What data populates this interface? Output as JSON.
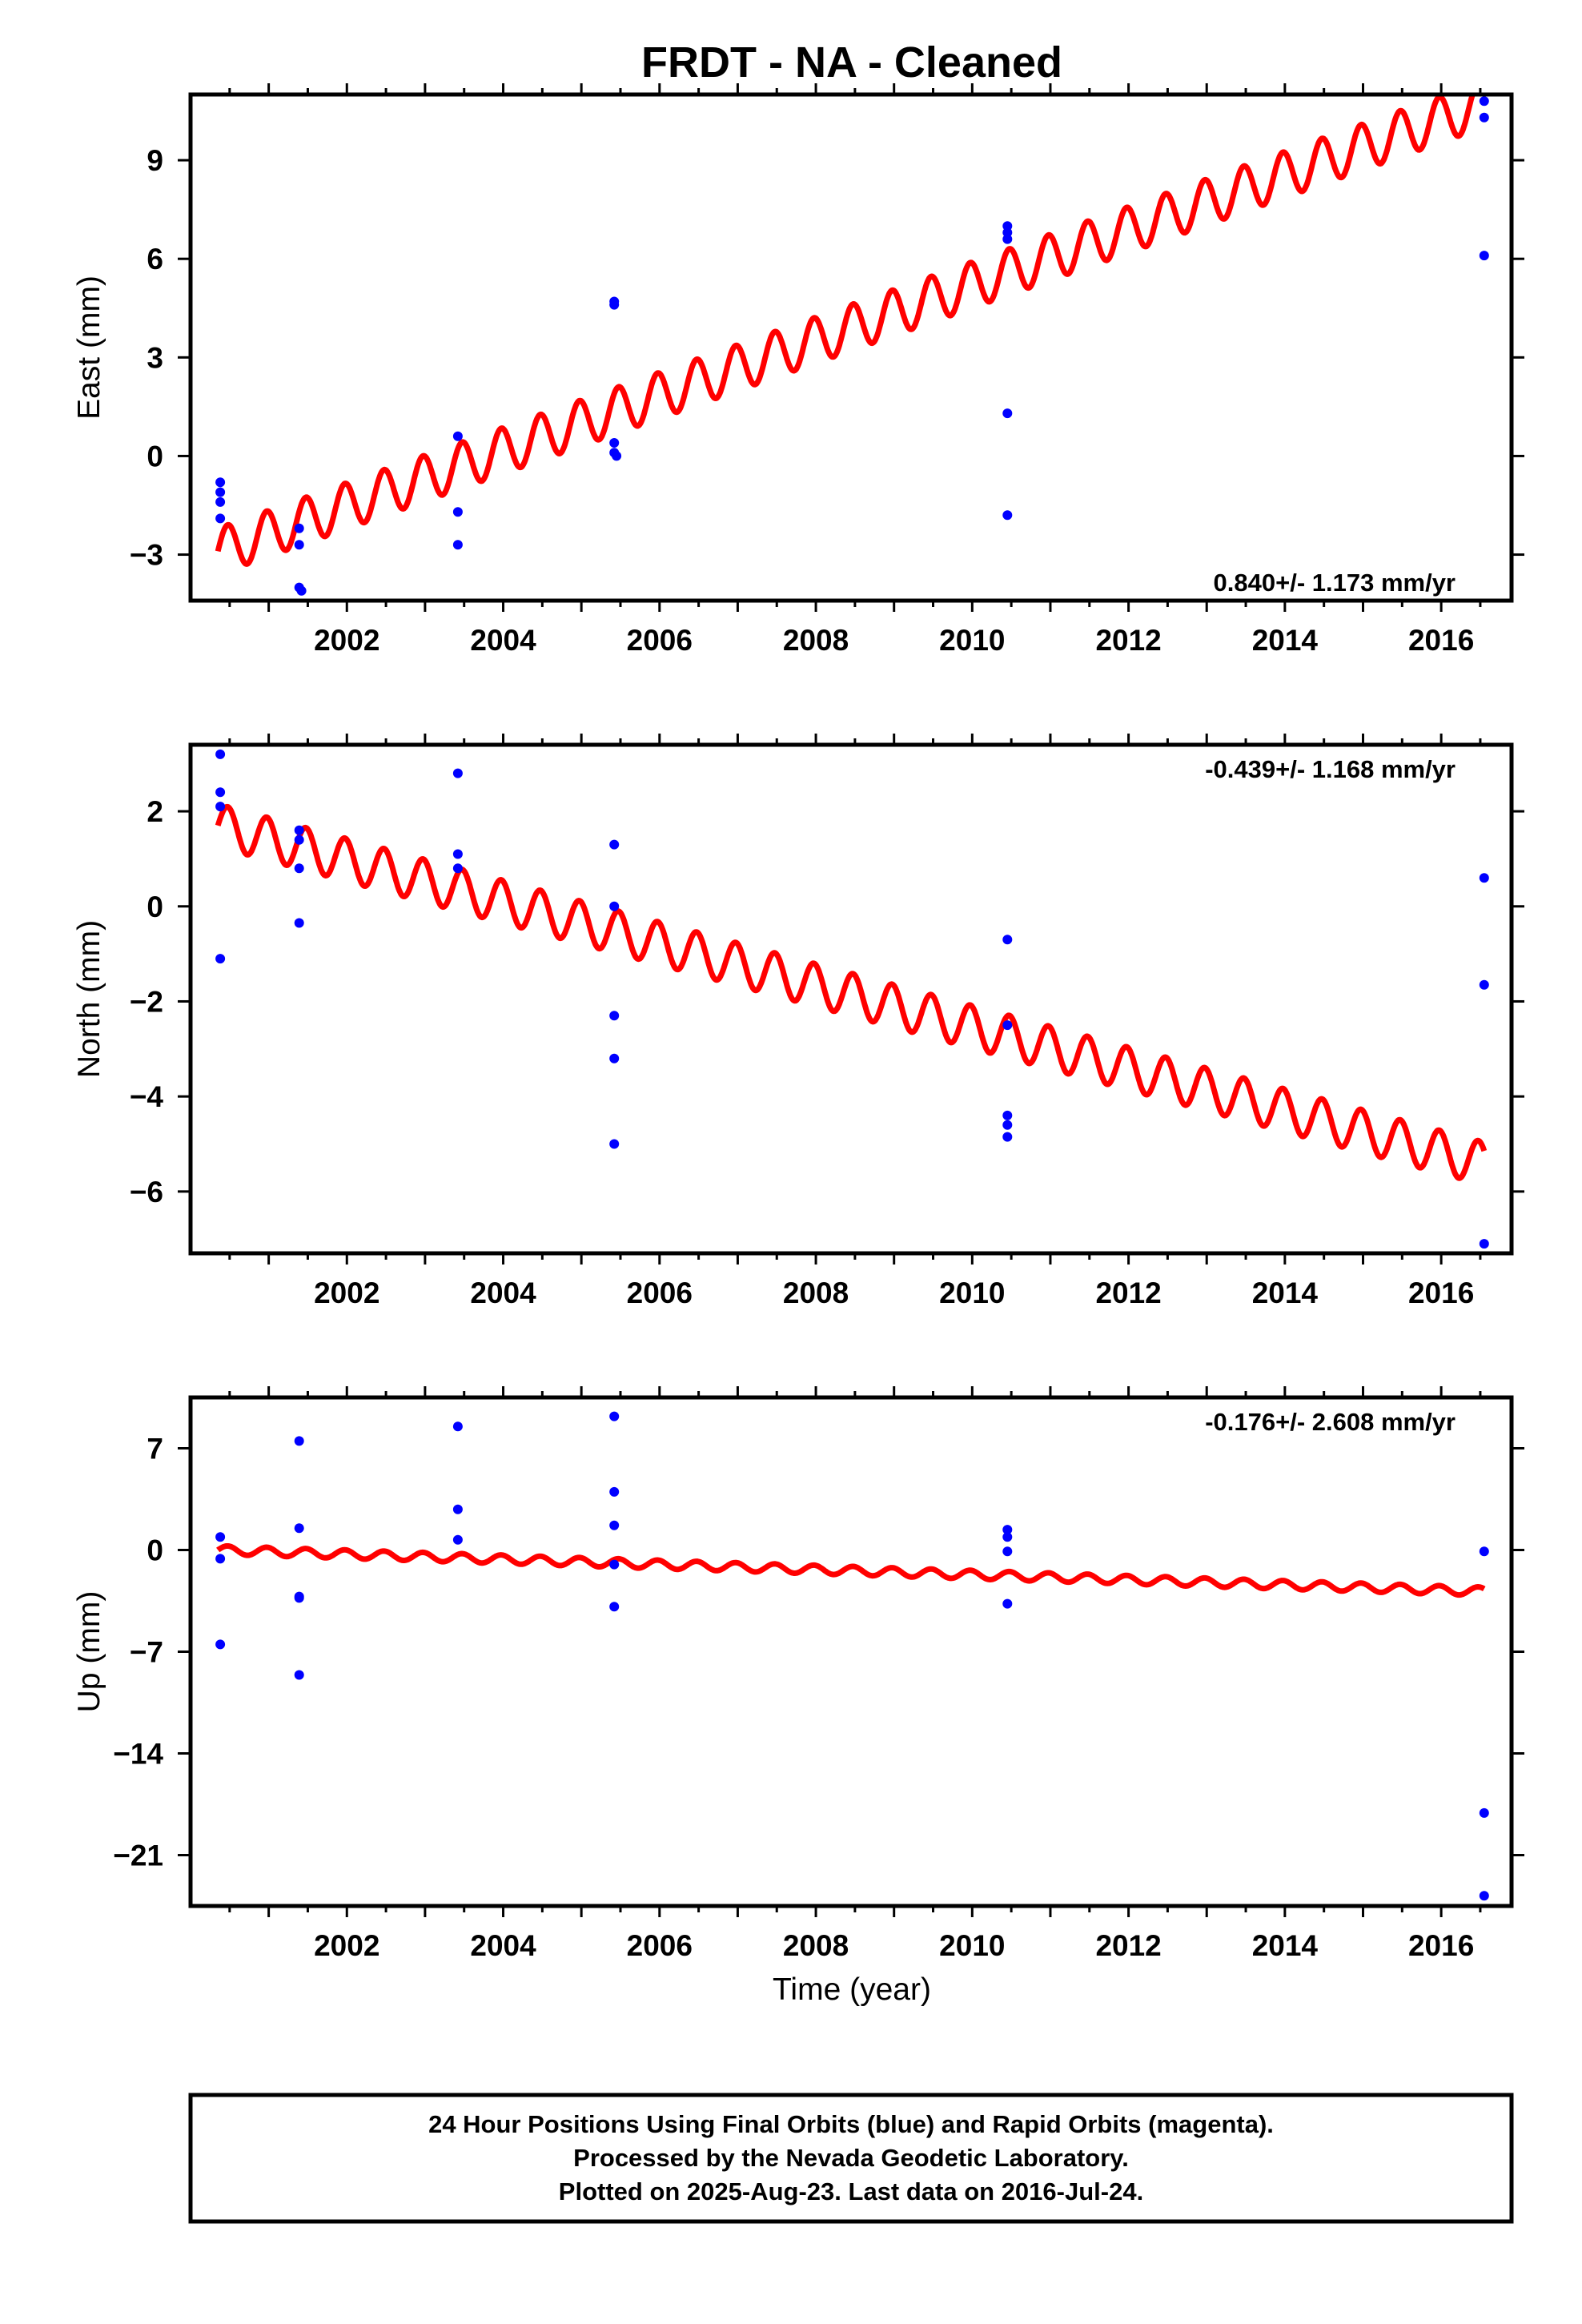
{
  "chart_data": {
    "title": "FRDT  - NA - Cleaned",
    "x_label": "Time (year)",
    "x_ticks": [
      2002,
      2004,
      2006,
      2008,
      2010,
      2012,
      2014,
      2016
    ],
    "xlim": [
      2000.0,
      2016.9
    ],
    "legend": {
      "line1": "24 Hour Positions Using Final Orbits (blue) and Rapid Orbits (magenta).",
      "line2": "Processed by the Nevada Geodetic Laboratory.",
      "line3": "Plotted on 2025-Aug-23. Last data on 2016-Jul-24."
    },
    "colors": {
      "final_orbits": "#0000ff",
      "model": "#ff0000",
      "rapid_orbits": "#ff00ff"
    },
    "panels": [
      {
        "type": "scatter",
        "id": "east",
        "ylabel": "East (mm)",
        "ylim": [
          -4.4,
          11.0
        ],
        "y_ticks": [
          -3,
          0,
          3,
          6,
          9
        ],
        "rate_label": "0.840+/- 1.173 mm/yr",
        "rate_position": "bottom-right",
        "model": {
          "start": 2000.35,
          "end": 2016.55,
          "a": -2.9,
          "b": 0.84,
          "amp": 0.7,
          "period": 0.5
        },
        "points": [
          [
            2000.38,
            -0.8
          ],
          [
            2000.38,
            -1.1
          ],
          [
            2000.38,
            -1.4
          ],
          [
            2000.38,
            -1.9
          ],
          [
            2001.39,
            -2.2
          ],
          [
            2001.39,
            -2.7
          ],
          [
            2001.39,
            -4.0
          ],
          [
            2001.42,
            -4.1
          ],
          [
            2003.42,
            0.6
          ],
          [
            2003.42,
            -1.7
          ],
          [
            2003.42,
            -2.7
          ],
          [
            2005.42,
            4.6
          ],
          [
            2005.42,
            4.7
          ],
          [
            2005.42,
            0.4
          ],
          [
            2005.42,
            0.1
          ],
          [
            2005.45,
            0.0
          ],
          [
            2010.45,
            7.0
          ],
          [
            2010.45,
            6.8
          ],
          [
            2010.45,
            6.6
          ],
          [
            2010.45,
            1.3
          ],
          [
            2010.45,
            -1.8
          ],
          [
            2016.55,
            10.8
          ],
          [
            2016.55,
            10.3
          ],
          [
            2016.55,
            6.1
          ]
        ]
      },
      {
        "type": "scatter",
        "id": "north",
        "ylabel": "North (mm)",
        "ylim": [
          -7.3,
          3.4
        ],
        "y_ticks": [
          -6,
          -4,
          -2,
          0,
          2
        ],
        "rate_label": "-0.439+/- 1.168 mm/yr",
        "rate_position": "top-right",
        "model": {
          "start": 2000.35,
          "end": 2016.55,
          "a": 1.7,
          "b": -0.439,
          "amp": 0.45,
          "period": 0.5
        },
        "points": [
          [
            2000.38,
            3.2
          ],
          [
            2000.38,
            2.4
          ],
          [
            2000.38,
            2.1
          ],
          [
            2000.38,
            -1.1
          ],
          [
            2001.39,
            1.6
          ],
          [
            2001.39,
            1.4
          ],
          [
            2001.39,
            0.8
          ],
          [
            2001.39,
            -0.35
          ],
          [
            2003.42,
            2.8
          ],
          [
            2003.42,
            1.1
          ],
          [
            2003.42,
            0.8
          ],
          [
            2005.42,
            1.3
          ],
          [
            2005.42,
            0.0
          ],
          [
            2005.42,
            -2.3
          ],
          [
            2005.42,
            -3.2
          ],
          [
            2005.42,
            -5.0
          ],
          [
            2010.45,
            -0.7
          ],
          [
            2010.45,
            -2.5
          ],
          [
            2010.45,
            -4.4
          ],
          [
            2010.45,
            -4.6
          ],
          [
            2010.45,
            -4.85
          ],
          [
            2016.55,
            0.6
          ],
          [
            2016.55,
            -1.65
          ],
          [
            2016.55,
            -7.1
          ]
        ]
      },
      {
        "type": "scatter",
        "id": "up",
        "ylabel": "Up (mm)",
        "ylim": [
          -24.5,
          10.5
        ],
        "y_ticks": [
          -21,
          -14,
          -7,
          0,
          7
        ],
        "rate_label": "-0.176+/- 2.608 mm/yr",
        "rate_position": "top-right",
        "model": {
          "start": 2000.35,
          "end": 2016.55,
          "a": 0.0,
          "b": -0.176,
          "amp": 0.3,
          "period": 0.5
        },
        "points": [
          [
            2000.38,
            0.9
          ],
          [
            2000.38,
            -0.6
          ],
          [
            2000.38,
            -6.5
          ],
          [
            2001.39,
            7.5
          ],
          [
            2001.39,
            1.5
          ],
          [
            2001.39,
            -3.2
          ],
          [
            2001.39,
            -3.3
          ],
          [
            2001.39,
            -8.6
          ],
          [
            2003.42,
            8.5
          ],
          [
            2003.42,
            2.8
          ],
          [
            2003.42,
            0.7
          ],
          [
            2005.42,
            9.2
          ],
          [
            2005.42,
            4.0
          ],
          [
            2005.42,
            1.7
          ],
          [
            2005.42,
            -1.0
          ],
          [
            2005.42,
            -3.9
          ],
          [
            2010.45,
            1.4
          ],
          [
            2010.45,
            0.9
          ],
          [
            2010.45,
            -0.1
          ],
          [
            2010.45,
            -3.7
          ],
          [
            2016.55,
            -0.1
          ],
          [
            2016.55,
            -18.1
          ],
          [
            2016.55,
            -23.8
          ]
        ]
      }
    ]
  }
}
